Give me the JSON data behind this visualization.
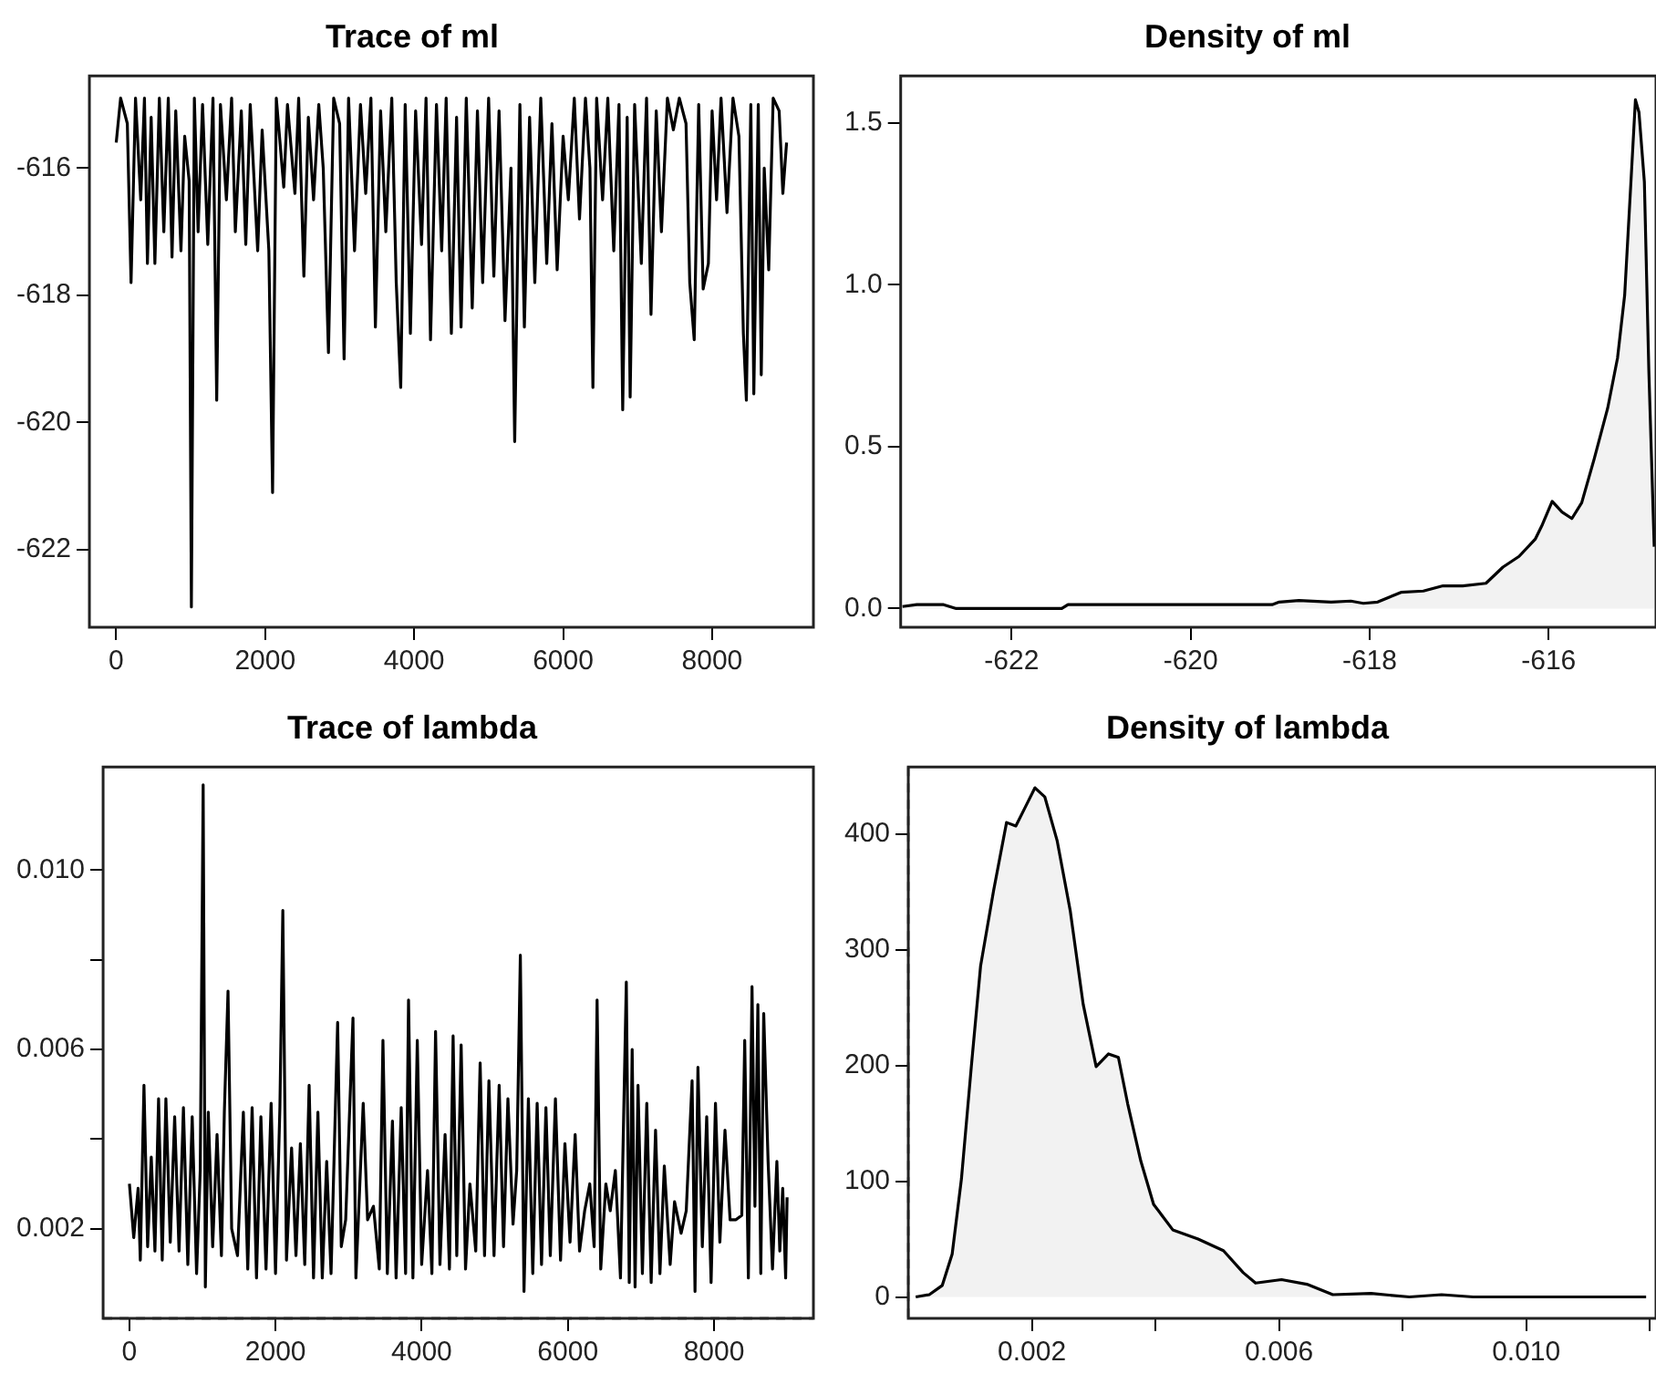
{
  "chart_data": [
    {
      "type": "line",
      "title": "Trace of ml",
      "grid": false,
      "marker": "none",
      "xlim": [
        -359,
        9360
      ],
      "xticks": [
        0,
        2000,
        4000,
        6000,
        8000
      ],
      "ylim": [
        -623.22,
        -614.55
      ],
      "yticks": [
        -622,
        -620,
        -618,
        -616
      ],
      "series": [
        {
          "color": "#000000",
          "x": [
            1,
            60,
            150,
            200,
            260,
            330,
            380,
            420,
            470,
            520,
            580,
            640,
            700,
            750,
            800,
            870,
            920,
            980,
            1010,
            1050,
            1100,
            1160,
            1230,
            1300,
            1350,
            1400,
            1480,
            1550,
            1600,
            1680,
            1740,
            1800,
            1900,
            1960,
            2050,
            2100,
            2150,
            2250,
            2300,
            2400,
            2450,
            2520,
            2580,
            2650,
            2720,
            2780,
            2850,
            2920,
            3000,
            3060,
            3120,
            3200,
            3280,
            3350,
            3420,
            3480,
            3550,
            3620,
            3700,
            3760,
            3820,
            3880,
            3950,
            4020,
            4100,
            4160,
            4220,
            4300,
            4370,
            4430,
            4500,
            4570,
            4630,
            4700,
            4780,
            4850,
            4920,
            5000,
            5070,
            5140,
            5220,
            5300,
            5350,
            5420,
            5480,
            5550,
            5620,
            5700,
            5780,
            5850,
            5920,
            6000,
            6070,
            6150,
            6220,
            6300,
            6360,
            6400,
            6450,
            6530,
            6600,
            6680,
            6750,
            6800,
            6860,
            6900,
            6960,
            7050,
            7120,
            7180,
            7250,
            7320,
            7400,
            7480,
            7560,
            7650,
            7700,
            7760,
            7820,
            7880,
            7950,
            8000,
            8060,
            8120,
            8200,
            8280,
            8360,
            8420,
            8460,
            8520,
            8560,
            8620,
            8660,
            8700,
            8760,
            8820,
            8900,
            8950,
            9000
          ],
          "values": [
            -615.6,
            -614.9,
            -615.3,
            -617.8,
            -614.9,
            -616.5,
            -614.9,
            -617.5,
            -615.2,
            -617.5,
            -614.9,
            -617.0,
            -614.9,
            -617.4,
            -615.1,
            -617.3,
            -615.5,
            -616.2,
            -622.9,
            -614.9,
            -617.0,
            -615.0,
            -617.2,
            -614.9,
            -619.65,
            -615.0,
            -616.5,
            -614.9,
            -617.0,
            -615.1,
            -617.2,
            -615.0,
            -617.3,
            -615.4,
            -617.3,
            -621.1,
            -614.9,
            -616.3,
            -615.0,
            -616.4,
            -614.9,
            -617.7,
            -615.2,
            -616.5,
            -615.0,
            -616.0,
            -618.9,
            -614.9,
            -615.3,
            -619.0,
            -614.9,
            -617.3,
            -615.0,
            -616.4,
            -614.9,
            -618.5,
            -615.1,
            -617.0,
            -614.9,
            -617.8,
            -619.45,
            -615.0,
            -618.6,
            -615.1,
            -617.2,
            -614.9,
            -618.7,
            -615.0,
            -617.3,
            -614.9,
            -618.6,
            -615.2,
            -618.5,
            -614.9,
            -618.2,
            -615.1,
            -617.8,
            -614.9,
            -617.7,
            -615.1,
            -618.4,
            -616.0,
            -620.3,
            -615.0,
            -618.5,
            -615.2,
            -617.8,
            -614.9,
            -617.5,
            -615.3,
            -617.6,
            -615.5,
            -616.5,
            -614.9,
            -616.8,
            -614.9,
            -616.0,
            -619.45,
            -614.9,
            -616.5,
            -614.9,
            -617.3,
            -615.0,
            -619.8,
            -615.2,
            -619.6,
            -615.0,
            -617.5,
            -614.9,
            -618.3,
            -615.1,
            -617.0,
            -614.9,
            -615.4,
            -614.9,
            -615.3,
            -617.8,
            -618.7,
            -615.0,
            -617.9,
            -617.5,
            -615.1,
            -616.5,
            -614.9,
            -616.7,
            -614.9,
            -615.5,
            -618.6,
            -619.65,
            -615.0,
            -619.55,
            -615.0,
            -619.25,
            -616.0,
            -617.6,
            -614.9,
            -615.1,
            -616.4,
            -615.6
          ]
        }
      ]
    },
    {
      "type": "area",
      "title": "Density of ml",
      "grid": false,
      "marker": "none",
      "xlim": [
        -623.24,
        -614.8
      ],
      "xticks": [
        -622,
        -620,
        -618,
        -616
      ],
      "ylim": [
        -0.058,
        1.646
      ],
      "yticks": [
        {
          "value": 0,
          "label": "0.0"
        },
        0.5,
        {
          "value": 1,
          "label": "1.0"
        },
        1.5
      ],
      "series": [
        {
          "color": "#000000",
          "x": [
            -623.22,
            -623.06,
            -622.76,
            -622.62,
            -621.44,
            -621.37,
            -619.09,
            -619.01,
            -618.79,
            -618.43,
            -618.21,
            -618.07,
            -617.91,
            -617.65,
            -617.4,
            -617.18,
            -616.96,
            -616.7,
            -616.51,
            -616.33,
            -616.15,
            -616.07,
            -615.96,
            -615.85,
            -615.74,
            -615.63,
            -615.49,
            -615.34,
            -615.23,
            -615.15,
            -615.08,
            -615.03,
            -614.99,
            -614.93,
            -614.88,
            -614.82
          ],
          "values": [
            0.006,
            0.012,
            0.012,
            0.0,
            0.0,
            0.012,
            0.012,
            0.02,
            0.025,
            0.02,
            0.023,
            0.016,
            0.02,
            0.05,
            0.054,
            0.07,
            0.07,
            0.078,
            0.128,
            0.161,
            0.214,
            0.259,
            0.331,
            0.298,
            0.278,
            0.327,
            0.463,
            0.619,
            0.774,
            0.969,
            1.319,
            1.572,
            1.533,
            1.319,
            0.735,
            0.191
          ]
        }
      ]
    },
    {
      "type": "line",
      "title": "Trace of lambda",
      "grid": false,
      "marker": "none",
      "xlim": [
        -359,
        9360
      ],
      "xticks": [
        0,
        2000,
        4000,
        6000,
        8000
      ],
      "ylim": [
        0,
        0.0123
      ],
      "yticks": [
        0.002,
        {
          "value": 0.004,
          "label": null
        },
        0.006,
        {
          "value": 0.008,
          "label": null
        },
        {
          "value": 0.01,
          "label": "0.010"
        }
      ],
      "ref_lines": [
        {
          "axis": "y",
          "value": 0,
          "line_style": "dashed"
        }
      ],
      "series": [
        {
          "color": "#000000",
          "x": [
            1,
            60,
            120,
            150,
            200,
            250,
            300,
            350,
            400,
            450,
            500,
            560,
            620,
            680,
            740,
            800,
            860,
            920,
            970,
            1010,
            1040,
            1080,
            1140,
            1200,
            1260,
            1300,
            1350,
            1400,
            1480,
            1560,
            1620,
            1680,
            1740,
            1800,
            1870,
            1940,
            2000,
            2060,
            2100,
            2150,
            2220,
            2280,
            2340,
            2400,
            2460,
            2520,
            2580,
            2640,
            2700,
            2760,
            2850,
            2900,
            2960,
            3060,
            3100,
            3200,
            3260,
            3340,
            3420,
            3470,
            3530,
            3600,
            3650,
            3720,
            3780,
            3820,
            3880,
            3940,
            4000,
            4080,
            4140,
            4190,
            4250,
            4320,
            4380,
            4430,
            4480,
            4540,
            4600,
            4660,
            4740,
            4800,
            4860,
            4920,
            4990,
            5060,
            5120,
            5180,
            5250,
            5300,
            5350,
            5400,
            5460,
            5520,
            5580,
            5640,
            5700,
            5760,
            5830,
            5900,
            5960,
            6030,
            6100,
            6160,
            6230,
            6300,
            6360,
            6400,
            6450,
            6520,
            6580,
            6650,
            6720,
            6800,
            6840,
            6880,
            6920,
            6960,
            7020,
            7080,
            7140,
            7200,
            7260,
            7320,
            7400,
            7460,
            7550,
            7620,
            7700,
            7740,
            7780,
            7840,
            7900,
            7960,
            8020,
            8080,
            8150,
            8220,
            8300,
            8380,
            8420,
            8470,
            8520,
            8560,
            8600,
            8640,
            8680,
            8740,
            8800,
            8860,
            8900,
            8940,
            8980,
            9000
          ],
          "values": [
            0.003,
            0.0018,
            0.0029,
            0.0013,
            0.0052,
            0.0016,
            0.0036,
            0.0015,
            0.0049,
            0.0013,
            0.0049,
            0.0017,
            0.0045,
            0.0015,
            0.0047,
            0.0012,
            0.0045,
            0.001,
            0.0033,
            0.0119,
            0.0007,
            0.0046,
            0.0016,
            0.0041,
            0.0014,
            0.0046,
            0.0073,
            0.002,
            0.0014,
            0.0046,
            0.0011,
            0.0047,
            0.0009,
            0.0045,
            0.0011,
            0.0048,
            0.001,
            0.0047,
            0.0091,
            0.0013,
            0.0038,
            0.0014,
            0.0039,
            0.0012,
            0.0052,
            0.0009,
            0.0046,
            0.0009,
            0.0035,
            0.001,
            0.0066,
            0.0016,
            0.0022,
            0.0067,
            0.0009,
            0.0048,
            0.0022,
            0.0025,
            0.0011,
            0.0062,
            0.001,
            0.0044,
            0.0009,
            0.0047,
            0.001,
            0.0071,
            0.0009,
            0.0062,
            0.0012,
            0.0033,
            0.001,
            0.0064,
            0.0012,
            0.0041,
            0.0011,
            0.0063,
            0.0014,
            0.0061,
            0.0011,
            0.003,
            0.0015,
            0.0057,
            0.0014,
            0.0053,
            0.0014,
            0.0052,
            0.0016,
            0.0049,
            0.0021,
            0.0033,
            0.0081,
            0.0006,
            0.0049,
            0.001,
            0.0048,
            0.0012,
            0.0047,
            0.0014,
            0.0049,
            0.0013,
            0.0039,
            0.0017,
            0.0041,
            0.0015,
            0.0024,
            0.003,
            0.0016,
            0.0071,
            0.0011,
            0.003,
            0.0024,
            0.0033,
            0.0009,
            0.0075,
            0.0008,
            0.006,
            0.0007,
            0.0052,
            0.001,
            0.0048,
            0.0008,
            0.0042,
            0.001,
            0.0034,
            0.0012,
            0.0026,
            0.0019,
            0.0024,
            0.0053,
            0.0006,
            0.0056,
            0.0016,
            0.0045,
            0.0008,
            0.0048,
            0.0017,
            0.0042,
            0.0022,
            0.0022,
            0.0023,
            0.0062,
            0.0009,
            0.0074,
            0.0025,
            0.007,
            0.001,
            0.0068,
            0.0035,
            0.0011,
            0.0035,
            0.0015,
            0.0029,
            0.0009,
            0.0027
          ]
        }
      ]
    },
    {
      "type": "area",
      "title": "Density of lambda",
      "grid": false,
      "marker": "none",
      "xlim": [
        0,
        0.0121
      ],
      "xticks": [
        0.002,
        {
          "value": 0.004,
          "label": null
        },
        0.006,
        {
          "value": 0.008,
          "label": null
        },
        {
          "value": 0.01,
          "label": "0.010"
        },
        {
          "value": 0.012,
          "label": null
        }
      ],
      "ylim": [
        -18.5,
        458
      ],
      "yticks": [
        0,
        100,
        200,
        300,
        400
      ],
      "ref_lines": [
        {
          "axis": "x",
          "value": 0,
          "line_style": "dashed"
        }
      ],
      "series": [
        {
          "color": "#000000",
          "x": [
            0.00012,
            0.00034,
            0.00055,
            0.00071,
            0.00086,
            0.00102,
            0.00117,
            0.00138,
            0.00159,
            0.00174,
            0.0019,
            0.00205,
            0.00221,
            0.00241,
            0.00262,
            0.00283,
            0.00304,
            0.00324,
            0.0034,
            0.00355,
            0.00376,
            0.00397,
            0.00428,
            0.00469,
            0.0051,
            0.00542,
            0.00562,
            0.00604,
            0.00645,
            0.00687,
            0.00749,
            0.00811,
            0.00863,
            0.00914,
            0.01018,
            0.01194
          ],
          "values": [
            0,
            2,
            10,
            37,
            102,
            199,
            286,
            351,
            410,
            407,
            424,
            440,
            432,
            394,
            334,
            253,
            199,
            210,
            207,
            167,
            118,
            80,
            58,
            50,
            40,
            21,
            12,
            15,
            11,
            2,
            3,
            0,
            2,
            0,
            0,
            0
          ]
        }
      ]
    }
  ]
}
